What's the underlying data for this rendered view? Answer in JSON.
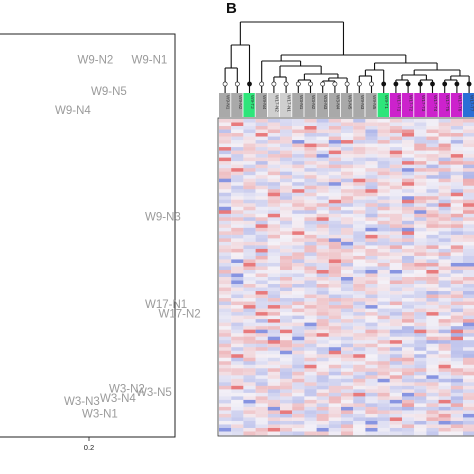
{
  "panel_b_letter": "B",
  "colors": {
    "W3": "#a9a9a9",
    "W9": "#a9a9a9",
    "W9-T": "#2ee57a",
    "W17": "#cfcfcf",
    "W17-T": "#cc22cc",
    "blue": "#2a6fd6",
    "heat_low": "#5b6fd8",
    "heat_mid": "#f4f1f7",
    "heat_high": "#e34a4a"
  },
  "chart_data": [
    {
      "type": "scatter",
      "panel": "A",
      "x_ticks": [
        {
          "value": 0.2,
          "label": "0.2"
        }
      ],
      "points": [
        {
          "label": "W9-N2",
          "x": 0.15,
          "y": 0.9
        },
        {
          "label": "W9-N1",
          "x": 0.27,
          "y": 0.9
        },
        {
          "label": "W9-N5",
          "x": 0.18,
          "y": 0.8
        },
        {
          "label": "W9-N4",
          "x": 0.1,
          "y": 0.74
        },
        {
          "label": "W9-N3",
          "x": 0.3,
          "y": 0.4
        },
        {
          "label": "W17-N1",
          "x": 0.3,
          "y": 0.12
        },
        {
          "label": "W17-N2",
          "x": 0.33,
          "y": 0.09
        },
        {
          "label": "W3-N2",
          "x": 0.22,
          "y": -0.15
        },
        {
          "label": "W3-N5",
          "x": 0.28,
          "y": -0.16
        },
        {
          "label": "W3-N4",
          "x": 0.2,
          "y": -0.18
        },
        {
          "label": "W3-N3",
          "x": 0.12,
          "y": -0.19
        },
        {
          "label": "W3-N1",
          "x": 0.16,
          "y": -0.23
        }
      ]
    },
    {
      "type": "heatmap",
      "panel": "B",
      "columns": [
        {
          "label": "W9-N1",
          "group": "W9"
        },
        {
          "label": "W9-N2",
          "group": "W9"
        },
        {
          "label": "W9-T2",
          "group": "W9-T"
        },
        {
          "label": "W9-N4",
          "group": "W9"
        },
        {
          "label": "W17-N2",
          "group": "W17"
        },
        {
          "label": "W17-N1",
          "group": "W17"
        },
        {
          "label": "W3-N1",
          "group": "W3"
        },
        {
          "label": "W3-N2",
          "group": "W3"
        },
        {
          "label": "W3-N3",
          "group": "W3"
        },
        {
          "label": "W3-N4",
          "group": "W3"
        },
        {
          "label": "W3-N5",
          "group": "W3"
        },
        {
          "label": "W9-N3",
          "group": "W9"
        },
        {
          "label": "W9-N5",
          "group": "W9"
        },
        {
          "label": "W9-T1",
          "group": "W9-T"
        },
        {
          "label": "W17-T1",
          "group": "W17-T"
        },
        {
          "label": "W17-T2",
          "group": "W17-T"
        },
        {
          "label": "W17-T3",
          "group": "W17-T"
        },
        {
          "label": "W17-T4",
          "group": "W17-T"
        },
        {
          "label": "W17-T5",
          "group": "W17-T"
        },
        {
          "label": "W17-T6",
          "group": "W17-T"
        },
        {
          "label": "W17-T7",
          "group": "blue"
        }
      ],
      "n_rows": 90
    }
  ]
}
